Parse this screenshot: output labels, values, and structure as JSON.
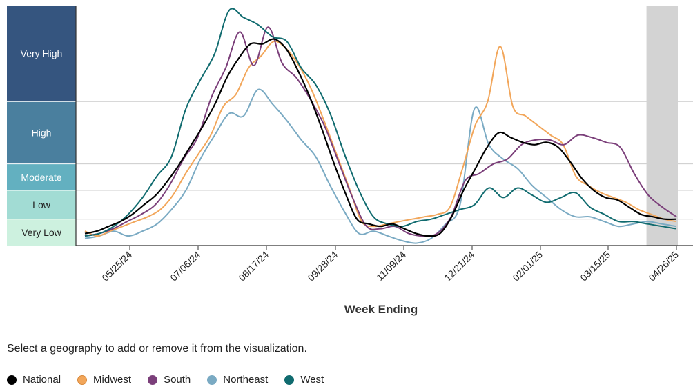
{
  "chart_data": {
    "type": "line",
    "xlabel": "Week Ending",
    "x_ticks": [
      "05/25/24",
      "07/06/24",
      "08/17/24",
      "09/28/24",
      "11/09/24",
      "12/21/24",
      "02/01/25",
      "03/15/25",
      "04/26/25"
    ],
    "levels": [
      {
        "name": "Very High",
        "color": "#35557f",
        "text_color": "#ffffff"
      },
      {
        "name": "High",
        "color": "#4a7f9e",
        "text_color": "#ffffff"
      },
      {
        "name": "Moderate",
        "color": "#63b0c0",
        "text_color": "#ffffff"
      },
      {
        "name": "Low",
        "color": "#a2dcd4",
        "text_color": "#222222"
      },
      {
        "name": "Very Low",
        "color": "#cdf1df",
        "text_color": "#222222"
      }
    ],
    "shaded_recent_weeks": 3,
    "series": [
      {
        "name": "National",
        "color": "#000000",
        "values": [
          0.5,
          0.6,
          0.8,
          1.0,
          1.3,
          1.7,
          2.1,
          2.7,
          3.4,
          4.2,
          5.0,
          5.9,
          7.0,
          7.8,
          8.4,
          8.4,
          8.6,
          8.2,
          7.3,
          6.2,
          4.9,
          3.5,
          2.2,
          1.1,
          0.9,
          0.8,
          0.9,
          0.7,
          0.5,
          0.4,
          0.5,
          1.2,
          2.3,
          3.2,
          4.1,
          4.7,
          4.5,
          4.3,
          4.2,
          4.3,
          4.1,
          3.5,
          2.8,
          2.3,
          2.0,
          1.9,
          1.6,
          1.3,
          1.2,
          1.1,
          1.1
        ]
      },
      {
        "name": "Midwest",
        "color": "#f2a65a",
        "values": [
          0.6,
          0.4,
          0.6,
          0.8,
          1.0,
          1.2,
          1.5,
          2.1,
          3.0,
          3.8,
          4.6,
          5.8,
          6.3,
          7.4,
          7.9,
          8.5,
          8.2,
          7.5,
          6.5,
          5.2,
          3.8,
          2.4,
          1.0,
          0.8,
          0.9,
          1.0,
          1.1,
          1.2,
          1.3,
          1.6,
          3.2,
          5.0,
          6.0,
          8.3,
          5.8,
          5.4,
          5.0,
          4.6,
          4.2,
          2.9,
          2.5,
          2.2,
          2.0,
          1.8,
          1.5,
          1.3,
          1.1,
          1.0
        ]
      },
      {
        "name": "South",
        "color": "#7b3f7a",
        "values": [
          0.4,
          0.5,
          0.7,
          1.0,
          1.3,
          1.7,
          2.5,
          3.6,
          4.5,
          6.2,
          7.4,
          8.9,
          7.5,
          9.1,
          7.6,
          7.0,
          6.1,
          5.0,
          3.5,
          2.0,
          0.8,
          0.7,
          0.8,
          0.5,
          0.4,
          0.5,
          1.2,
          2.7,
          3.0,
          3.4,
          3.6,
          4.2,
          4.4,
          4.4,
          4.2,
          4.6,
          4.5,
          4.3,
          4.1,
          3.0,
          2.1,
          1.6,
          1.2
        ]
      },
      {
        "name": "Northeast",
        "color": "#7aaac3",
        "values": [
          0.3,
          0.4,
          0.6,
          0.4,
          0.6,
          0.9,
          1.5,
          2.3,
          3.6,
          4.6,
          5.5,
          5.4,
          6.5,
          5.9,
          5.2,
          4.4,
          3.7,
          2.5,
          1.4,
          0.5,
          0.6,
          0.4,
          0.2,
          0.1,
          0.3,
          0.9,
          1.7,
          5.7,
          4.2,
          3.6,
          3.2,
          2.5,
          2.0,
          1.5,
          1.2,
          1.2,
          1.0,
          0.8,
          0.9,
          1.0,
          0.9,
          0.8
        ]
      },
      {
        "name": "West",
        "color": "#106b6f",
        "values": [
          0.4,
          0.5,
          0.8,
          1.3,
          2.0,
          2.9,
          3.7,
          5.7,
          6.9,
          8.0,
          9.8,
          9.5,
          9.2,
          8.7,
          8.5,
          7.4,
          6.7,
          5.5,
          3.8,
          2.3,
          1.2,
          0.9,
          0.8,
          1.0,
          1.1,
          1.3,
          1.5,
          1.7,
          2.4,
          2.0,
          2.4,
          2.1,
          1.8,
          2.0,
          2.2,
          1.6,
          1.3,
          1.0,
          1.0,
          0.9,
          0.8,
          0.7
        ]
      }
    ]
  },
  "instruction": "Select a geography to add or remove it from the visualization.",
  "legend": [
    {
      "name": "National",
      "color": "#000000"
    },
    {
      "name": "Midwest",
      "color": "#f2a65a"
    },
    {
      "name": "South",
      "color": "#7b3f7a"
    },
    {
      "name": "Northeast",
      "color": "#7aaac3"
    },
    {
      "name": "West",
      "color": "#106b6f"
    }
  ]
}
